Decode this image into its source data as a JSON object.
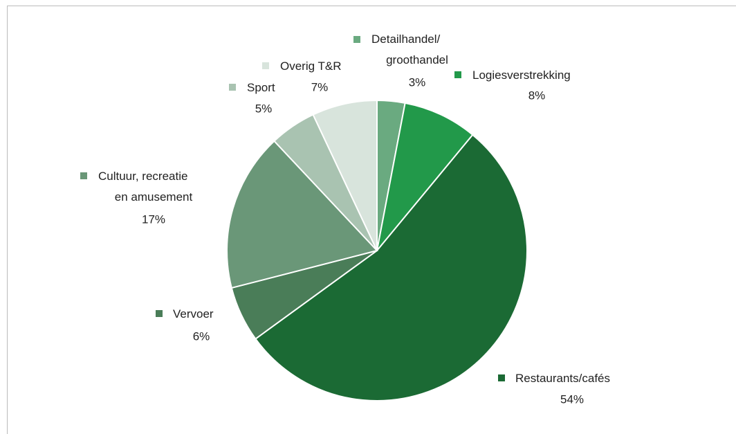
{
  "chart_data": {
    "type": "pie",
    "categories": [
      "Detailhandel/ groothandel",
      "Logiesverstrekking",
      "Restaurants/cafés",
      "Vervoer",
      "Cultuur, recreatie en amusement",
      "Sport",
      "Overig T&R"
    ],
    "values": [
      3,
      8,
      54,
      6,
      17,
      5,
      7
    ],
    "value_labels": [
      "3%",
      "8%",
      "54%",
      "6%",
      "17%",
      "5%",
      "7%"
    ],
    "colors": [
      "#6aaa80",
      "#22994a",
      "#1b6a34",
      "#4a7d58",
      "#6a9778",
      "#a9c3b1",
      "#d8e4dc"
    ]
  }
}
